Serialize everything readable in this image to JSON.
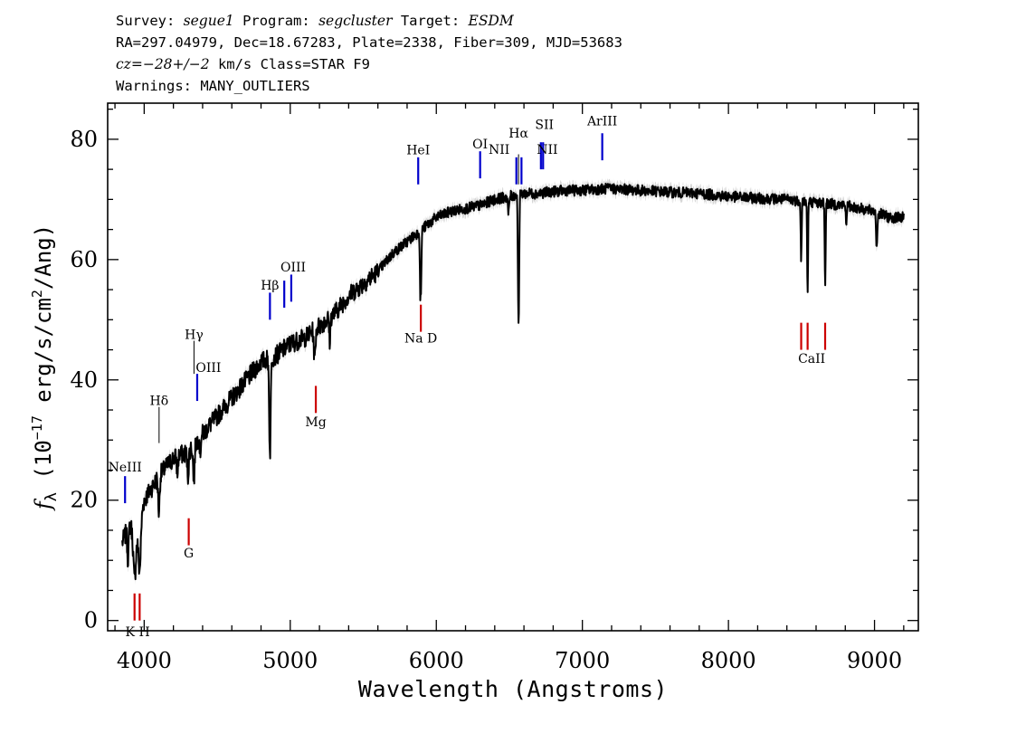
{
  "header": {
    "line1": {
      "survey_label": "Survey: ",
      "survey": "segue1",
      "program_label": " Program: ",
      "program": "segcluster",
      "target_label": " Target: ",
      "target": "ESDM"
    },
    "line2": "RA=297.04979, Dec=18.67283, Plate=2338, Fiber=309, MJD=53683",
    "line3": {
      "cz": "cz=−28+/−2",
      "rest": " km/s Class=STAR F9"
    },
    "line4": "Warnings: MANY_OUTLIERS"
  },
  "chart_data": {
    "type": "line",
    "title": "",
    "xlabel": "Wavelength (Angstroms)",
    "ylabel": "f_λ (10^-17 erg/s/cm^2/Ang)",
    "xlim": [
      3750,
      9300
    ],
    "ylim": [
      -1.7,
      86
    ],
    "xticks": [
      4000,
      5000,
      6000,
      7000,
      8000,
      9000
    ],
    "yticks": [
      0,
      20,
      40,
      60,
      80
    ],
    "grid": false,
    "colors": {
      "spectrum": "#000000",
      "error": "#b0b0b0",
      "emission": "#0000cc",
      "absorption": "#cc0000",
      "unfit": "#000000"
    },
    "continuum": [
      [
        3850,
        13
      ],
      [
        3900,
        16
      ],
      [
        3950,
        14
      ],
      [
        4000,
        20
      ],
      [
        4050,
        22
      ],
      [
        4100,
        24
      ],
      [
        4200,
        27
      ],
      [
        4300,
        28
      ],
      [
        4400,
        31
      ],
      [
        4500,
        34
      ],
      [
        4600,
        37
      ],
      [
        4700,
        40
      ],
      [
        4800,
        43
      ],
      [
        4900,
        44
      ],
      [
        5000,
        46
      ],
      [
        5100,
        47
      ],
      [
        5200,
        49
      ],
      [
        5300,
        51
      ],
      [
        5400,
        54
      ],
      [
        5500,
        56
      ],
      [
        5600,
        58
      ],
      [
        5700,
        61
      ],
      [
        5800,
        63
      ],
      [
        5900,
        65
      ],
      [
        6000,
        67
      ],
      [
        6100,
        68
      ],
      [
        6200,
        68.5
      ],
      [
        6300,
        69
      ],
      [
        6400,
        70
      ],
      [
        6500,
        70.5
      ],
      [
        6600,
        71
      ],
      [
        6700,
        71
      ],
      [
        6800,
        71.3
      ],
      [
        6900,
        71.5
      ],
      [
        7000,
        71.5
      ],
      [
        7100,
        71.7
      ],
      [
        7200,
        71.8
      ],
      [
        7400,
        71.5
      ],
      [
        7600,
        71.2
      ],
      [
        7800,
        71
      ],
      [
        8000,
        70.5
      ],
      [
        8200,
        70.2
      ],
      [
        8400,
        70
      ],
      [
        8600,
        69.5
      ],
      [
        8800,
        69
      ],
      [
        9000,
        68
      ],
      [
        9100,
        67
      ],
      [
        9200,
        67
      ]
    ],
    "absorption_features": [
      [
        3934,
        8,
        8
      ],
      [
        3969,
        8,
        8
      ],
      [
        3889,
        5,
        5
      ],
      [
        4101,
        6,
        5
      ],
      [
        4227,
        3,
        4
      ],
      [
        4300,
        4,
        5
      ],
      [
        4340,
        6,
        5
      ],
      [
        4384,
        3,
        3
      ],
      [
        4861,
        16,
        5
      ],
      [
        5167,
        5,
        5
      ],
      [
        5270,
        4,
        4
      ],
      [
        5890,
        10,
        3
      ],
      [
        5896,
        8,
        3
      ],
      [
        6494,
        3,
        4
      ],
      [
        6563,
        22,
        4
      ],
      [
        8498,
        10,
        3
      ],
      [
        8542,
        16,
        3
      ],
      [
        8662,
        14,
        3
      ],
      [
        8806,
        3,
        3
      ],
      [
        9015,
        6,
        4
      ]
    ],
    "lines": {
      "emission": [
        {
          "name": "NeIII",
          "wave": 3869,
          "y0": 19.5,
          "y1": 24
        },
        {
          "name": "Hδ",
          "wave": 4102,
          "y0": 29.5,
          "y1": 35.5,
          "unfit": true
        },
        {
          "name": "Hγ",
          "wave": 4341,
          "y0": 41,
          "y1": 46.5,
          "unfit": true
        },
        {
          "name": "OIII",
          "wave": 4363,
          "y0": 36.5,
          "y1": 41
        },
        {
          "name": "Hβ",
          "wave": 4861,
          "y0": 50,
          "y1": 54.5
        },
        {
          "name": "OIII",
          "wave": 4959,
          "y0": 52,
          "y1": 56.5
        },
        {
          "name": "",
          "wave": 5007,
          "y0": 53,
          "y1": 57.5
        },
        {
          "name": "HeI",
          "wave": 5876,
          "y0": 72.5,
          "y1": 77
        },
        {
          "name": "OI",
          "wave": 6300,
          "y0": 73.5,
          "y1": 78
        },
        {
          "name": "NII",
          "wave": 6548,
          "y0": 72.5,
          "y1": 77
        },
        {
          "name": "Hα",
          "wave": 6563,
          "y0": 72.5,
          "y1": 77.5,
          "unfit": true
        },
        {
          "name": "NII",
          "wave": 6583,
          "y0": 72.5,
          "y1": 77
        },
        {
          "name": "SII",
          "wave": 6716,
          "y0": 75,
          "y1": 79.5
        },
        {
          "name": "",
          "wave": 6731,
          "y0": 75,
          "y1": 79.5
        },
        {
          "name": "ArIII",
          "wave": 7136,
          "y0": 76.5,
          "y1": 81
        }
      ],
      "absorption": [
        {
          "name": "K",
          "wave": 3934,
          "y0": 0,
          "y1": 4.5
        },
        {
          "name": "H",
          "wave": 3969,
          "y0": 0,
          "y1": 4.5
        },
        {
          "name": "G",
          "wave": 4305,
          "y0": 12.5,
          "y1": 17
        },
        {
          "name": "Mg",
          "wave": 5175,
          "y0": 34.5,
          "y1": 39
        },
        {
          "name": "Na D",
          "wave": 5894,
          "y0": 48,
          "y1": 52.5
        },
        {
          "name": "CaII",
          "wave": 8498,
          "y0": 45,
          "y1": 49.5
        },
        {
          "name": "",
          "wave": 8542,
          "y0": 45,
          "y1": 49.5
        },
        {
          "name": "",
          "wave": 8662,
          "y0": 45,
          "y1": 49.5
        }
      ]
    },
    "label_text": {
      "Hd": "Hδ",
      "Hg": "Hγ",
      "Hb": "Hβ",
      "Ha": "Hα",
      "NaD": "Na  D",
      "KH": "K H"
    }
  }
}
